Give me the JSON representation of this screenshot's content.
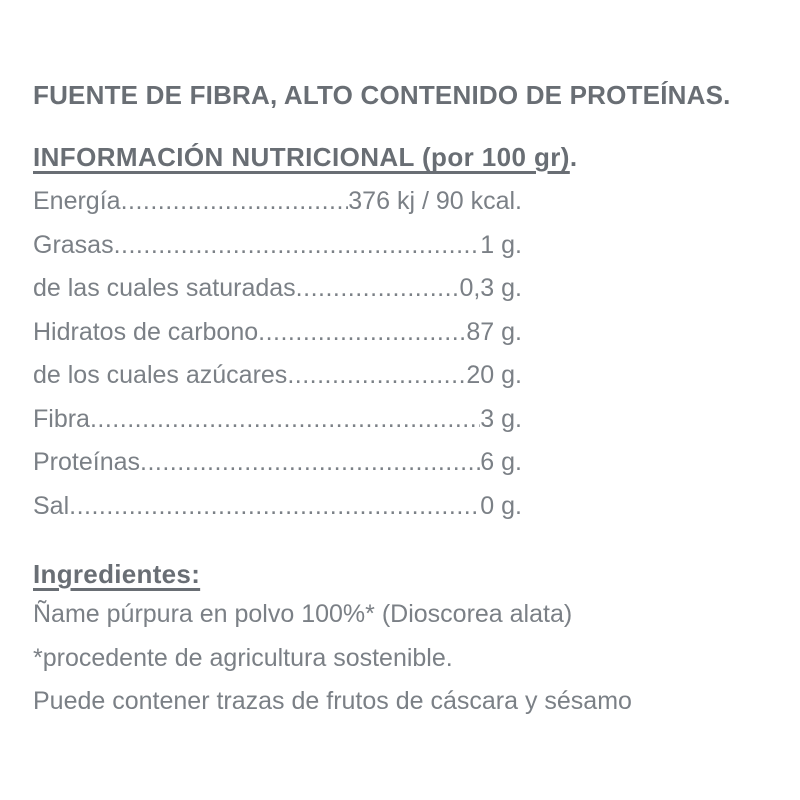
{
  "claims_line": "FUENTE DE FIBRA, ALTO CONTENIDO DE PROTEÍNAS.",
  "nutrition": {
    "heading": "INFORMACIÓN NUTRICIONAL (por 100 gr)",
    "heading_suffix": ".",
    "rows": [
      {
        "label": "Energía",
        "value": "376 kj / 90 kcal."
      },
      {
        "label": "Grasas",
        "value": "1 g."
      },
      {
        "label": "de las cuales saturadas",
        "value": "0,3 g."
      },
      {
        "label": "Hidratos de carbono",
        "value": "87 g."
      },
      {
        "label": "de los cuales azúcares",
        "value": "20 g."
      },
      {
        "label": "Fibra",
        "value": "3 g."
      },
      {
        "label": "Proteínas",
        "value": "6 g."
      },
      {
        "label": "Sal",
        "value": "0 g."
      }
    ]
  },
  "ingredients": {
    "heading": "Ingredientes:",
    "lines": [
      "Ñame púrpura en polvo 100%* (Dioscorea alata)",
      "*procedente de agricultura sostenible.",
      "Puede contener trazas de frutos de cáscara y sésamo"
    ]
  },
  "colors": {
    "background": "#ffffff",
    "heading_text": "#696e74",
    "body_text": "#7b8086"
  }
}
